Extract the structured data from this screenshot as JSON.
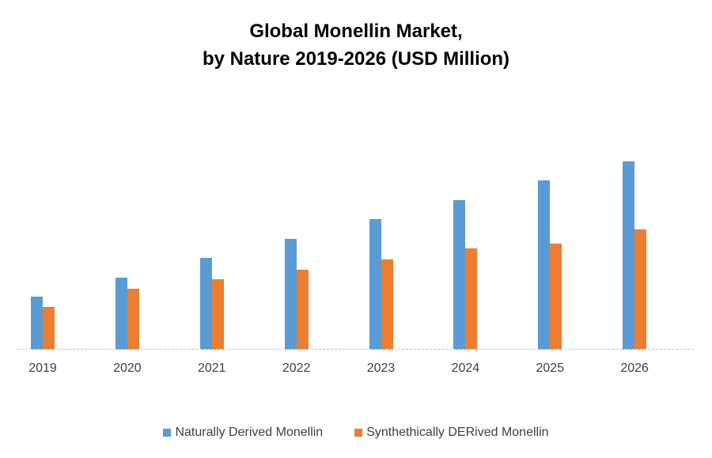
{
  "chart_data": {
    "type": "bar",
    "title": "Global Monellin Market,\nby Nature 2019-2026 (USD Million)",
    "title_lines": [
      "Global Monellin Market,",
      "by Nature 2019-2026 (USD Million)"
    ],
    "xlabel": "",
    "ylabel": "",
    "categories": [
      "2019",
      "2020",
      "2021",
      "2022",
      "2023",
      "2024",
      "2025",
      "2026"
    ],
    "series": [
      {
        "name": "Naturally Derived Monellin",
        "color": "#5B9BD5",
        "values": [
          67,
          91,
          116,
          140,
          165,
          189,
          214,
          238
        ]
      },
      {
        "name": "Synthethically DERived Monellin",
        "color": "#ED7D31",
        "values": [
          54,
          77,
          89,
          101,
          114,
          128,
          134,
          152
        ]
      }
    ],
    "ylim": [
      0,
      312
    ],
    "grid": false,
    "y_axis_visible": false,
    "legend_position": "bottom",
    "note": "No y-axis scale shown; values are relative bar heights in px"
  }
}
